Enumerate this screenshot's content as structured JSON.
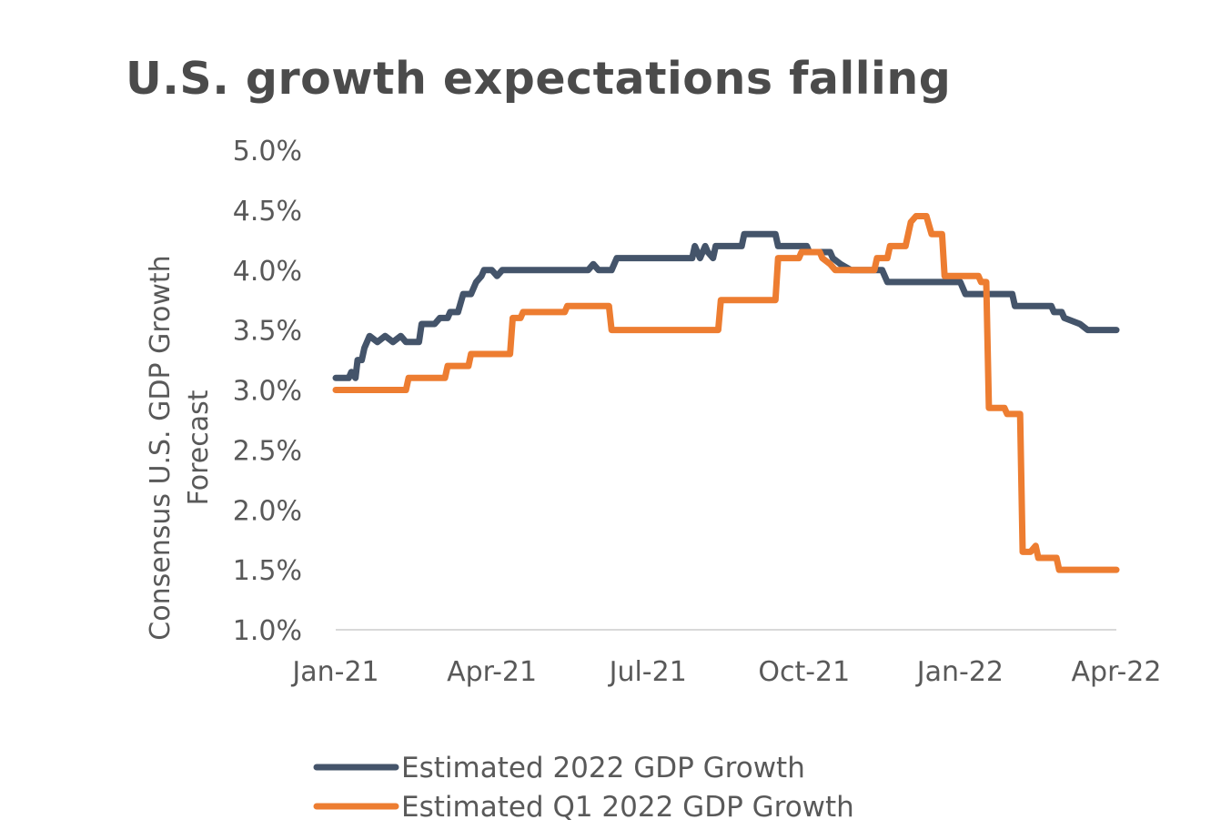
{
  "chart_data": {
    "type": "line",
    "title": "U.S. growth expectations falling",
    "xlabel": "",
    "ylabel_lines": [
      "Consensus U.S. GDP Growth",
      "Forecast"
    ],
    "x_tick_labels": [
      "Jan-21",
      "Apr-21",
      "Jul-21",
      "Oct-21",
      "Jan-22",
      "Apr-22"
    ],
    "y_tick_labels": [
      "1.0%",
      "1.5%",
      "2.0%",
      "2.5%",
      "3.0%",
      "3.5%",
      "4.0%",
      "4.5%",
      "5.0%"
    ],
    "y_ticks": [
      1.0,
      1.5,
      2.0,
      2.5,
      3.0,
      3.5,
      4.0,
      4.5,
      5.0
    ],
    "ylim": [
      1.0,
      5.0
    ],
    "x_unit": "months since Jan-21",
    "xlim": [
      0,
      15
    ],
    "grid": false,
    "legend_position": "bottom",
    "series": [
      {
        "name": "Estimated 2022 GDP Growth",
        "color": "#44546a",
        "points": [
          [
            0,
            3.1
          ],
          [
            0.25,
            3.1
          ],
          [
            0.3,
            3.15
          ],
          [
            0.38,
            3.1
          ],
          [
            0.42,
            3.25
          ],
          [
            0.5,
            3.25
          ],
          [
            0.55,
            3.35
          ],
          [
            0.65,
            3.45
          ],
          [
            0.8,
            3.4
          ],
          [
            0.95,
            3.45
          ],
          [
            1.1,
            3.4
          ],
          [
            1.25,
            3.45
          ],
          [
            1.35,
            3.4
          ],
          [
            1.6,
            3.4
          ],
          [
            1.65,
            3.55
          ],
          [
            1.9,
            3.55
          ],
          [
            2.0,
            3.6
          ],
          [
            2.15,
            3.6
          ],
          [
            2.2,
            3.65
          ],
          [
            2.35,
            3.65
          ],
          [
            2.45,
            3.8
          ],
          [
            2.6,
            3.8
          ],
          [
            2.7,
            3.9
          ],
          [
            2.8,
            3.95
          ],
          [
            2.85,
            4.0
          ],
          [
            3.0,
            4.0
          ],
          [
            3.1,
            3.95
          ],
          [
            3.2,
            4.0
          ],
          [
            4.85,
            4.0
          ],
          [
            4.95,
            4.05
          ],
          [
            5.05,
            4.0
          ],
          [
            5.3,
            4.0
          ],
          [
            5.4,
            4.1
          ],
          [
            6.85,
            4.1
          ],
          [
            6.9,
            4.2
          ],
          [
            7.0,
            4.1
          ],
          [
            7.1,
            4.2
          ],
          [
            7.15,
            4.15
          ],
          [
            7.25,
            4.1
          ],
          [
            7.3,
            4.2
          ],
          [
            7.8,
            4.2
          ],
          [
            7.85,
            4.3
          ],
          [
            8.45,
            4.3
          ],
          [
            8.5,
            4.2
          ],
          [
            9.05,
            4.2
          ],
          [
            9.1,
            4.15
          ],
          [
            9.5,
            4.15
          ],
          [
            9.55,
            4.1
          ],
          [
            9.7,
            4.05
          ],
          [
            9.9,
            4.0
          ],
          [
            10.5,
            4.0
          ],
          [
            10.6,
            3.9
          ],
          [
            12.0,
            3.9
          ],
          [
            12.1,
            3.8
          ],
          [
            13.0,
            3.8
          ],
          [
            13.05,
            3.7
          ],
          [
            13.75,
            3.7
          ],
          [
            13.8,
            3.65
          ],
          [
            13.95,
            3.65
          ],
          [
            14.0,
            3.6
          ],
          [
            14.3,
            3.55
          ],
          [
            14.45,
            3.5
          ],
          [
            15.0,
            3.5
          ]
        ]
      },
      {
        "name": "Estimated Q1 2022 GDP Growth",
        "color": "#ed7d31",
        "points": [
          [
            0,
            3.0
          ],
          [
            1.35,
            3.0
          ],
          [
            1.4,
            3.1
          ],
          [
            2.1,
            3.1
          ],
          [
            2.15,
            3.2
          ],
          [
            2.55,
            3.2
          ],
          [
            2.6,
            3.3
          ],
          [
            3.35,
            3.3
          ],
          [
            3.4,
            3.6
          ],
          [
            3.55,
            3.6
          ],
          [
            3.6,
            3.65
          ],
          [
            4.4,
            3.65
          ],
          [
            4.45,
            3.7
          ],
          [
            5.25,
            3.7
          ],
          [
            5.3,
            3.5
          ],
          [
            7.35,
            3.5
          ],
          [
            7.4,
            3.75
          ],
          [
            8.45,
            3.75
          ],
          [
            8.5,
            4.1
          ],
          [
            8.9,
            4.1
          ],
          [
            8.95,
            4.15
          ],
          [
            9.3,
            4.15
          ],
          [
            9.35,
            4.1
          ],
          [
            9.5,
            4.05
          ],
          [
            9.6,
            4.0
          ],
          [
            10.35,
            4.0
          ],
          [
            10.4,
            4.1
          ],
          [
            10.6,
            4.1
          ],
          [
            10.65,
            4.2
          ],
          [
            10.95,
            4.2
          ],
          [
            11.0,
            4.3
          ],
          [
            11.05,
            4.4
          ],
          [
            11.15,
            4.45
          ],
          [
            11.35,
            4.45
          ],
          [
            11.45,
            4.3
          ],
          [
            11.65,
            4.3
          ],
          [
            11.7,
            3.95
          ],
          [
            12.35,
            3.95
          ],
          [
            12.4,
            3.9
          ],
          [
            12.5,
            3.9
          ],
          [
            12.55,
            2.85
          ],
          [
            12.85,
            2.85
          ],
          [
            12.9,
            2.8
          ],
          [
            13.15,
            2.8
          ],
          [
            13.2,
            1.65
          ],
          [
            13.35,
            1.65
          ],
          [
            13.45,
            1.7
          ],
          [
            13.5,
            1.6
          ],
          [
            13.85,
            1.6
          ],
          [
            13.9,
            1.5
          ],
          [
            15.0,
            1.5
          ]
        ]
      }
    ]
  }
}
